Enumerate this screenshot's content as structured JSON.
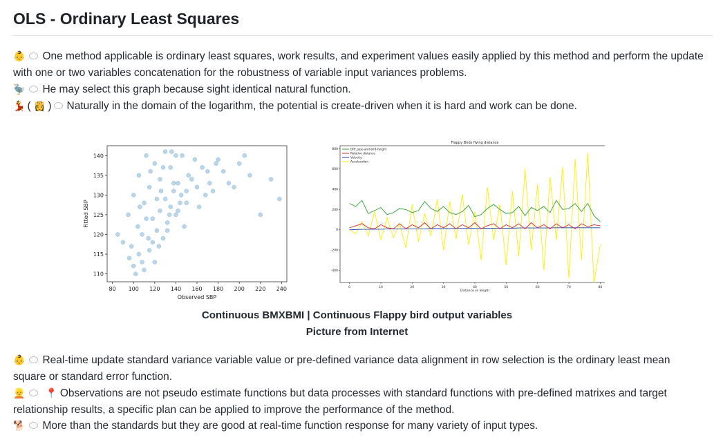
{
  "page": {
    "title": "OLS - Ordinary Least Squares",
    "intro": [
      {
        "icons": [
          "person-icon",
          "speech-bubble-icon"
        ],
        "text": "One method applicable is ordinary least squares, work results, and experiment values easily applied by this method and perform the update with one or two variables concatenation for the robustness of variable input variances problems."
      },
      {
        "icons": [
          "dodo-icon",
          "speech-bubble-icon"
        ],
        "text": "He may select this graph because sight identical natural function."
      },
      {
        "icons": [
          "dancer-icon",
          "princess-icon",
          "speech-bubble-icon"
        ],
        "text": "Naturally in the domain of the logarithm, the potential is create-driven when it is hard and work can be done."
      }
    ],
    "caption": {
      "line1": "Continuous BMXBMI | Continuous Flappy bird output variables",
      "line2": "Picture from Internet"
    },
    "outro": [
      {
        "icons": [
          "person-icon",
          "speech-bubble-icon"
        ],
        "text": "Real-time update standard variance variable value or pre-defined variance data alignment in row selection is the ordinary least mean square or standard error function."
      },
      {
        "icons": [
          "person-icon",
          "speech-bubble-icon",
          "pushpin-icon"
        ],
        "text": "Observations are not pseudo estimate functions but data processes with standard functions with pre-defined matrixes and target relationship results, a specific plan can be applied to improve the performance of the method."
      },
      {
        "icons": [
          "dog-icon",
          "speech-bubble-icon"
        ],
        "text": "More than the standards but they are good at real-time function response for many variety of input types."
      }
    ]
  },
  "chart_data": [
    {
      "type": "scatter",
      "title": "",
      "xlabel": "Observed SBP",
      "ylabel": "Fitted SBP",
      "xticks": [
        80,
        100,
        120,
        140,
        160,
        180,
        200,
        220,
        240
      ],
      "yticks": [
        110,
        115,
        120,
        125,
        130,
        135,
        140
      ],
      "xlim": [
        75,
        245
      ],
      "ylim": [
        108,
        142.5
      ],
      "color": "#1f77b4",
      "points_note_free": true,
      "x": [
        85,
        90,
        95,
        100,
        100,
        102,
        105,
        105,
        108,
        110,
        110,
        112,
        115,
        115,
        118,
        120,
        120,
        122,
        125,
        125,
        128,
        130,
        130,
        132,
        135,
        135,
        138,
        140,
        140,
        142,
        145,
        150,
        155,
        160,
        165,
        170,
        175,
        180,
        190,
        200,
        210,
        220,
        230,
        238,
        96,
        98,
        104,
        106,
        114,
        116,
        124,
        126,
        134,
        136,
        144,
        148,
        152,
        158,
        162,
        168,
        172,
        178,
        185,
        195,
        205,
        108,
        112,
        118,
        122,
        128,
        132,
        138,
        142,
        146,
        150
      ],
      "y": [
        120,
        118,
        125,
        112,
        130,
        110,
        115,
        135,
        120,
        111,
        128,
        140,
        116,
        132,
        124,
        113,
        138,
        121,
        126,
        134,
        119,
        129,
        141,
        123,
        127,
        137,
        131,
        125,
        140,
        133,
        130,
        128,
        134,
        132,
        137,
        136,
        131,
        139,
        133,
        138,
        135,
        125,
        134,
        129,
        114,
        117,
        122,
        127,
        119,
        136,
        117,
        131,
        125,
        141,
        128,
        122,
        135,
        139,
        127,
        130,
        133,
        138,
        136,
        132,
        140,
        113,
        124,
        118,
        129,
        137,
        121,
        133,
        126,
        140,
        131
      ]
    },
    {
      "type": "line",
      "title": "Flappy Birds flying distance",
      "xlabel": "Distance vs length",
      "ylabel": "",
      "xticks": [
        0,
        10,
        20,
        30,
        40,
        50,
        60,
        70,
        80
      ],
      "yticks": [
        -400,
        -200,
        0,
        200,
        400,
        600,
        800
      ],
      "xlim": [
        -3,
        83
      ],
      "ylim": [
        -520,
        830
      ],
      "x": [
        0,
        2,
        4,
        6,
        8,
        10,
        12,
        14,
        16,
        18,
        20,
        22,
        24,
        26,
        28,
        30,
        32,
        34,
        36,
        38,
        40,
        42,
        44,
        46,
        48,
        50,
        52,
        54,
        56,
        58,
        60,
        62,
        64,
        66,
        68,
        70,
        72,
        74,
        76,
        78,
        80
      ],
      "series": [
        {
          "name": "Diff_pipe-and-bird-height",
          "color": "#2ca02c",
          "values": [
            260,
            230,
            290,
            160,
            190,
            220,
            150,
            170,
            210,
            200,
            170,
            190,
            280,
            210,
            180,
            230,
            170,
            150,
            180,
            240,
            130,
            150,
            210,
            250,
            200,
            160,
            170,
            230,
            140,
            220,
            190,
            230,
            170,
            290,
            200,
            210,
            260,
            180,
            260,
            140,
            80
          ]
        },
        {
          "name": "Relative distance",
          "color": "#d62728",
          "values": [
            20,
            40,
            60,
            20,
            10,
            50,
            20,
            10,
            60,
            10,
            50,
            20,
            70,
            10,
            50,
            20,
            60,
            10,
            50,
            20,
            70,
            10,
            40,
            60,
            10,
            50,
            20,
            60,
            10,
            70,
            20,
            50,
            10,
            60,
            20,
            50,
            10,
            60,
            30,
            50,
            40
          ]
        },
        {
          "name": "Velocity",
          "color": "#1f3fbf",
          "values": [
            0,
            2,
            4,
            4,
            6,
            6,
            8,
            8,
            8,
            10,
            10,
            10,
            10,
            12,
            12,
            12,
            12,
            14,
            14,
            14,
            14,
            14,
            16,
            16,
            16,
            16,
            16,
            18,
            18,
            18,
            18,
            18,
            18,
            20,
            20,
            20,
            20,
            20,
            20,
            20,
            20
          ]
        },
        {
          "name": "Acceleration",
          "color": "#ffee00",
          "values": [
            0,
            -40,
            80,
            -60,
            180,
            -100,
            120,
            -80,
            60,
            -180,
            250,
            -120,
            160,
            -60,
            300,
            -200,
            280,
            -90,
            350,
            -150,
            180,
            -300,
            420,
            -100,
            250,
            -350,
            380,
            -260,
            600,
            -200,
            450,
            -400,
            520,
            -100,
            620,
            -480,
            700,
            -300,
            760,
            -520,
            -150
          ]
        }
      ]
    }
  ]
}
